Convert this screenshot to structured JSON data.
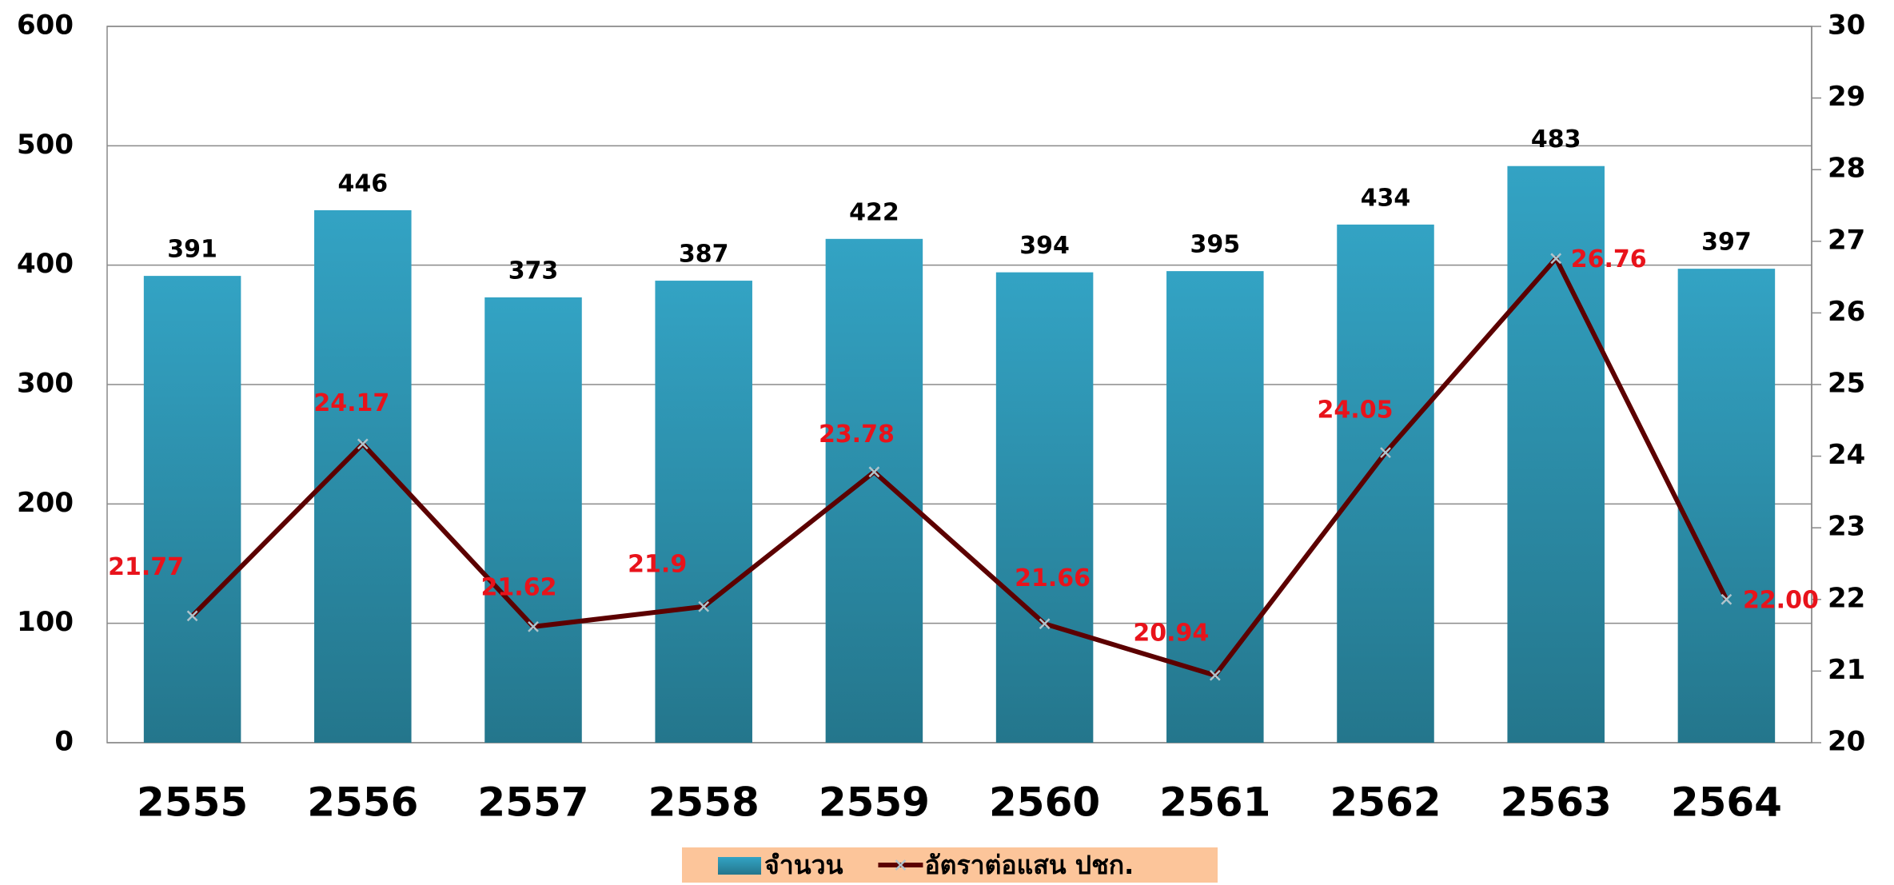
{
  "chart_data": {
    "type": "bar",
    "categories": [
      "2555",
      "2556",
      "2557",
      "2558",
      "2559",
      "2560",
      "2561",
      "2562",
      "2563",
      "2564"
    ],
    "series": [
      {
        "name": "จำนวน",
        "color": "#2b8eab",
        "values": [
          391,
          446,
          373,
          387,
          422,
          394,
          395,
          434,
          483,
          397
        ]
      },
      {
        "name": "อัตราต่อแสน ปชก.",
        "type": "line",
        "axis": "y2",
        "color": "#5c0000",
        "values": [
          21.77,
          24.17,
          21.62,
          21.9,
          23.78,
          21.66,
          20.94,
          24.05,
          26.76,
          22.0
        ],
        "value_labels": [
          "21.77",
          "24.17",
          "21.62",
          "21.9",
          "23.78",
          "21.66",
          "20.94",
          "24.05",
          "26.76",
          "22.00"
        ]
      }
    ],
    "ylim": [
      0,
      600
    ],
    "yticks": [
      0,
      100,
      200,
      300,
      400,
      500,
      600
    ],
    "y2lim": [
      20,
      30
    ],
    "y2ticks": [
      20,
      21,
      22,
      23,
      24,
      25,
      26,
      27,
      28,
      29,
      30
    ],
    "grid": true,
    "legend": "bottom"
  }
}
